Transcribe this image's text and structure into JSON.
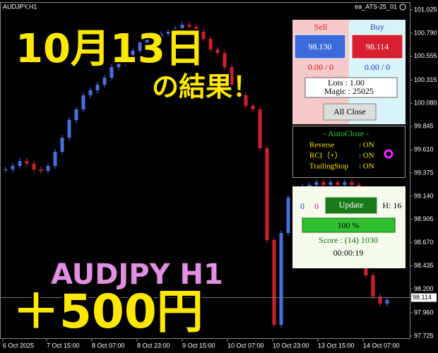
{
  "header": {
    "symbol": "AUDJPY,H1",
    "ea": "ea_ATS-25_01"
  },
  "overlay": {
    "date": "10月13日",
    "result": "の結果！",
    "pair": "AUDJPY H1",
    "profit": "＋500円"
  },
  "chart": {
    "type": "candlestick",
    "closes": [
      99.411,
      99.446,
      99.496,
      99.468,
      99.411,
      99.396,
      99.446,
      99.589,
      99.732,
      99.911,
      100.018,
      100.161,
      100.211,
      100.268,
      100.339,
      100.446,
      100.482,
      100.554,
      100.611,
      100.696,
      100.732,
      100.696,
      100.782,
      100.804,
      100.839,
      100.875,
      100.854,
      100.804,
      100.732,
      100.625,
      100.589,
      100.446,
      100.268,
      100.161,
      100.054,
      100.018,
      99.625,
      98.696,
      97.839,
      98.768,
      99.125,
      99.196,
      99.232,
      99.254,
      99.282,
      99.254,
      99.282,
      99.254,
      99.282,
      99.254,
      98.982,
      98.339,
      98.125,
      98.054,
      98.089
    ],
    "ylim": [
      97.725,
      101.025
    ],
    "yticks": [
      101.025,
      {
        "value": 100.79,
        "label": "100.790"
      },
      100.555,
      100.315,
      {
        "value": 100.08,
        "label": "100.080"
      },
      99.845,
      {
        "value": 99.61,
        "label": "99.610"
      },
      99.375,
      {
        "value": 99.14,
        "label": "99.140"
      },
      98.905,
      {
        "value": 98.67,
        "label": "98.670"
      },
      98.435,
      {
        "value": 98.2,
        "label": "98.200"
      },
      {
        "value": 97.96,
        "label": "97.960"
      },
      97.725
    ],
    "x_labels": [
      "6 Oct 2025",
      "7 Oct 15:00",
      "8 Oct 07:00",
      "8 Oct 23:00",
      "9 Oct 15:00",
      "10 Oct 07:00",
      "10 Oct 23:00",
      "13 Oct 15:00",
      "14 Oct 07:00"
    ],
    "current_price": {
      "value": 98.114,
      "label": "98.114"
    }
  },
  "panel": {
    "sell": "Sell",
    "buy": "Buy",
    "sell_price": "98.130",
    "buy_price": "98.114",
    "sell_pos": "0.00 / 0",
    "buy_pos": "0.00 / 0",
    "lots": "Lots   : 1.00",
    "magic": "Magic : 25025",
    "all_close": "All Close",
    "autoclose": "- AutoClose -",
    "options": [
      [
        "Reverse",
        ": ON"
      ],
      [
        "RCI（+）",
        ": ON"
      ],
      [
        "TrailingStop",
        ": ON"
      ]
    ],
    "count_a": "0",
    "count_b": "0",
    "update": "Update",
    "h": "H: 16",
    "progress": "100 %",
    "score": "Score : (14) 1030",
    "timer": "00:00:19"
  }
}
